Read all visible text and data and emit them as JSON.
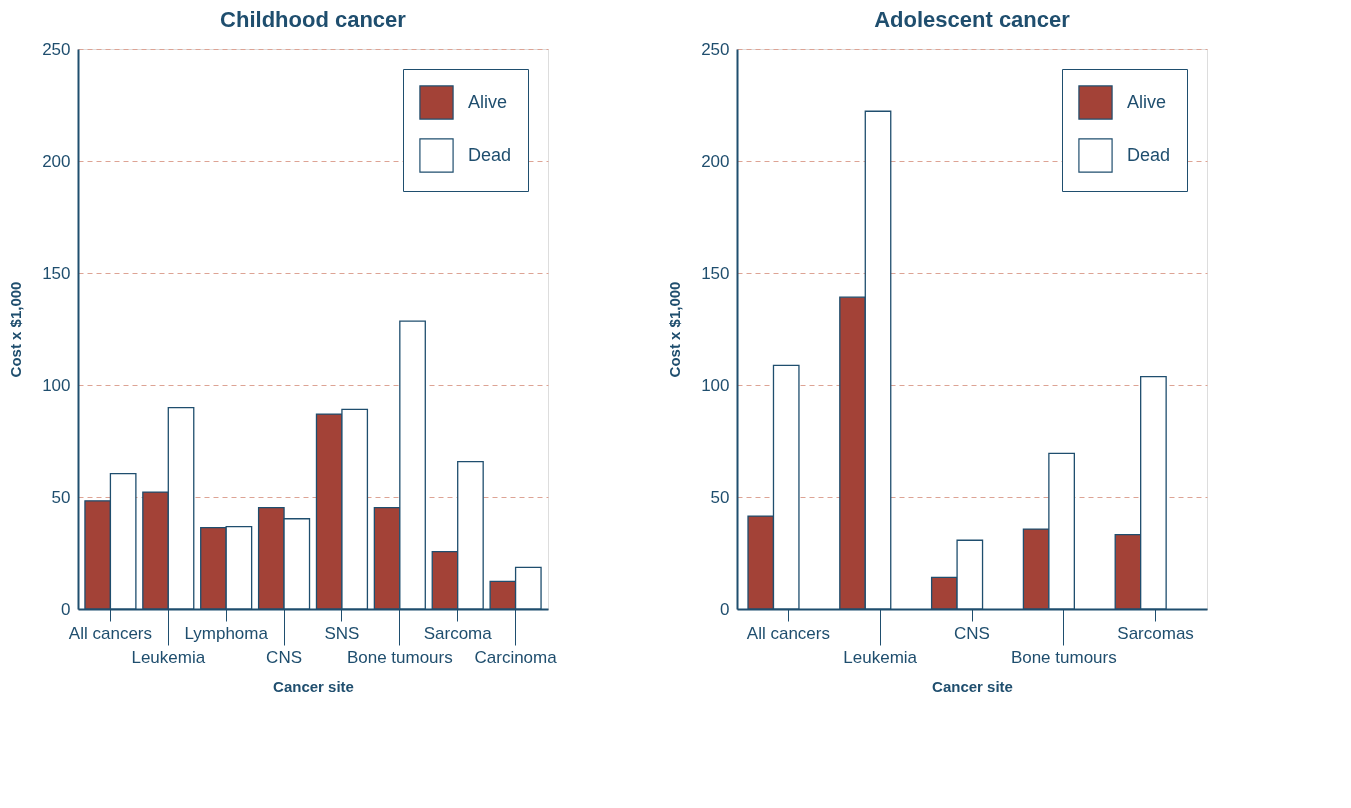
{
  "chart_data": [
    {
      "type": "bar",
      "title": "Childhood cancer",
      "xlabel": "Cancer site",
      "ylabel": "Cost x $1,000",
      "categories": [
        "All cancers",
        "Leukemia",
        "Lymphoma",
        "CNS",
        "SNS",
        "Bone tumours",
        "Sarcoma",
        "Carcinoma"
      ],
      "series": [
        {
          "name": "Alive",
          "color": "#a34237",
          "values": [
            48.3,
            52.2,
            36.3,
            45.3,
            87.0,
            45.3,
            25.6,
            12.3
          ]
        },
        {
          "name": "Dead",
          "color": "#ffffff",
          "values": [
            60.4,
            89.9,
            36.8,
            40.3,
            89.1,
            128.5,
            65.8,
            18.6
          ]
        }
      ],
      "ylim": [
        0,
        250
      ],
      "yticks": [
        0,
        50,
        100,
        150,
        200,
        250
      ],
      "grid": "y",
      "legend": "top right"
    },
    {
      "type": "bar",
      "title": "Adolescent cancer",
      "xlabel": "Cancer site",
      "ylabel": "Cost x $1,000",
      "categories": [
        "All cancers",
        "Leukemia",
        "CNS",
        "Bone tumours",
        "Sarcomas"
      ],
      "series": [
        {
          "name": "Alive",
          "color": "#a34237",
          "values": [
            41.5,
            139.2,
            14.1,
            35.7,
            33.2
          ]
        },
        {
          "name": "Dead",
          "color": "#ffffff",
          "values": [
            108.8,
            222.2,
            30.7,
            69.5,
            103.7
          ]
        }
      ],
      "ylim": [
        0,
        250
      ],
      "yticks": [
        0,
        50,
        100,
        150,
        200,
        250
      ],
      "grid": "y",
      "legend": "top right"
    }
  ]
}
